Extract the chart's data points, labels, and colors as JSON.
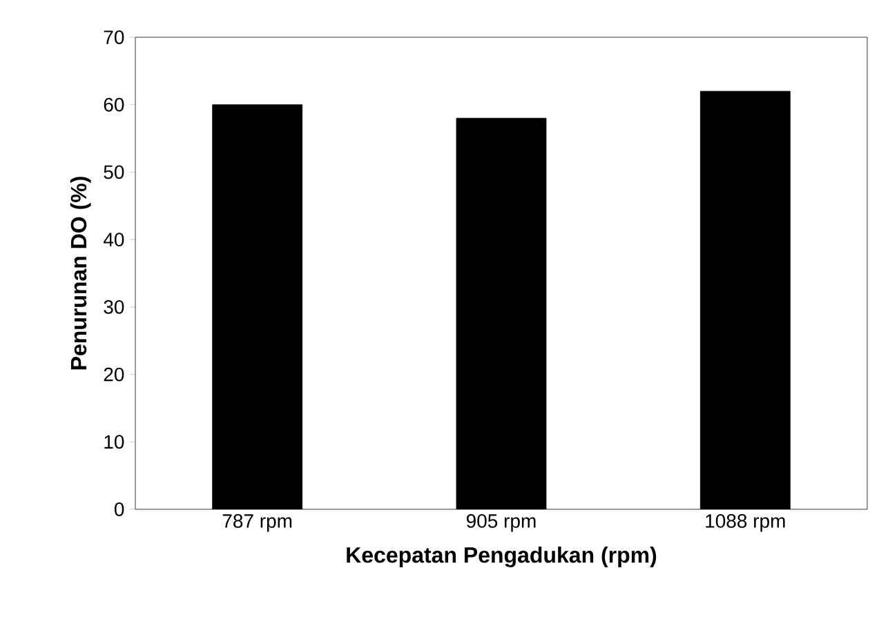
{
  "chart_data": {
    "type": "bar",
    "xlabel": "Kecepatan Pengadukan (rpm)",
    "ylabel": "Penurunan DO (%)",
    "categories": [
      "787 rpm",
      "905 rpm",
      "1088 rpm"
    ],
    "values": [
      60,
      58,
      62
    ],
    "color": "#000000",
    "ylim": [
      0,
      70
    ],
    "yticks": [
      0,
      10,
      20,
      30,
      40,
      50,
      60,
      70
    ],
    "grid": false
  }
}
